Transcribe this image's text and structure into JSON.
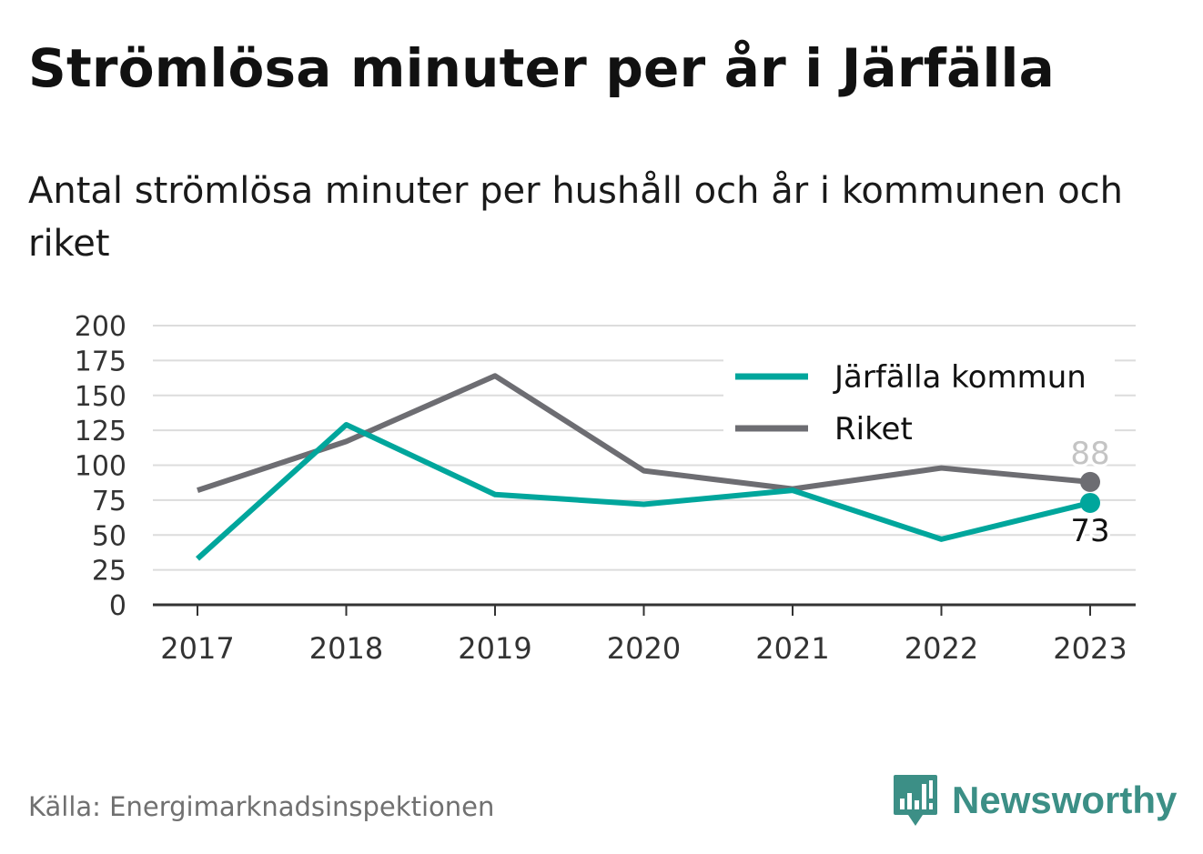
{
  "header": {
    "title": "Strömlösa minuter per år i Järfälla",
    "subtitle": "Antal strömlösa minuter per hushåll och år i kommunen och riket"
  },
  "footer": {
    "source": "Källa: Energimarknadsinspektionen",
    "brand_name": "Newsworthy",
    "brand_icon": "bar-chart-icon",
    "brand_color": "#3c8f86"
  },
  "chart_data": {
    "type": "line",
    "x": [
      "2017",
      "2018",
      "2019",
      "2020",
      "2021",
      "2022",
      "2023"
    ],
    "y_ticks": [
      "0",
      "25",
      "50",
      "75",
      "100",
      "125",
      "150",
      "175",
      "200"
    ],
    "ylim": [
      0,
      200
    ],
    "grid": true,
    "legend_position": "top-right",
    "series": [
      {
        "name": "Järfälla kommun",
        "color": "#00a69c",
        "values": [
          33,
          129,
          79,
          72,
          82,
          47,
          73
        ],
        "end_label": "73"
      },
      {
        "name": "Riket",
        "color": "#6d6d72",
        "values": [
          82,
          117,
          164,
          96,
          83,
          98,
          88
        ],
        "end_label": "88"
      }
    ]
  }
}
